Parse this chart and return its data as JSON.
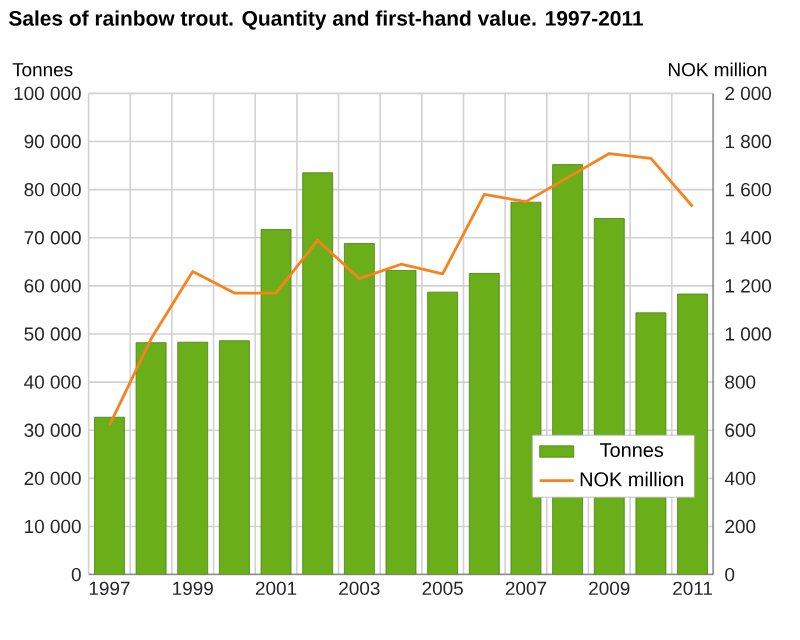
{
  "chart_data": {
    "type": "bar",
    "title": "Sales of rainbow trout. Quantity and first-hand value. 1997-2011",
    "ylabel": "Tonnes",
    "y2label": "NOK million",
    "categories": [
      "1997",
      null,
      "1999",
      null,
      "2001",
      null,
      "2003",
      null,
      "2005",
      null,
      "2007",
      null,
      "2009",
      null,
      "2011"
    ],
    "series": [
      {
        "name": "Tonnes",
        "color": "#6aaf1a",
        "values": [
          32700,
          48200,
          48300,
          48600,
          71700,
          83500,
          68800,
          63200,
          58700,
          62600,
          77400,
          85200,
          74000,
          54400,
          58300
        ]
      },
      {
        "name": "NOK million",
        "type": "line",
        "axis": "y2",
        "color": "#f7821e",
        "values": [
          620,
          980,
          1260,
          1170,
          1170,
          1390,
          1230,
          1290,
          1250,
          1580,
          1550,
          1650,
          1750,
          1730,
          1530
        ]
      }
    ],
    "ylim": [
      0,
      100000
    ],
    "yticks": [
      0,
      {
        "value": 10000,
        "label": "10 000"
      },
      {
        "value": 20000,
        "label": "20 000"
      },
      {
        "value": 30000,
        "label": "30 000"
      },
      {
        "value": 40000,
        "label": "40 000"
      },
      {
        "value": 50000,
        "label": "50 000"
      },
      {
        "value": 60000,
        "label": "60 000"
      },
      {
        "value": 70000,
        "label": "70 000"
      },
      {
        "value": 80000,
        "label": "80 000"
      },
      {
        "value": 90000,
        "label": "90 000"
      },
      {
        "value": 100000,
        "label": "100 000"
      }
    ],
    "y2lim": [
      0,
      2000
    ],
    "y2ticks": [
      0,
      200,
      400,
      600,
      800,
      {
        "value": 1000,
        "label": "1 000"
      },
      {
        "value": 1200,
        "label": "1 200"
      },
      {
        "value": 1400,
        "label": "1 400"
      },
      {
        "value": 1600,
        "label": "1 600"
      },
      {
        "value": 1800,
        "label": "1 800"
      },
      {
        "value": 2000,
        "label": "2 000"
      }
    ],
    "grid": true,
    "legend": "bottom right",
    "marker": "none",
    "line_style": "solid"
  }
}
